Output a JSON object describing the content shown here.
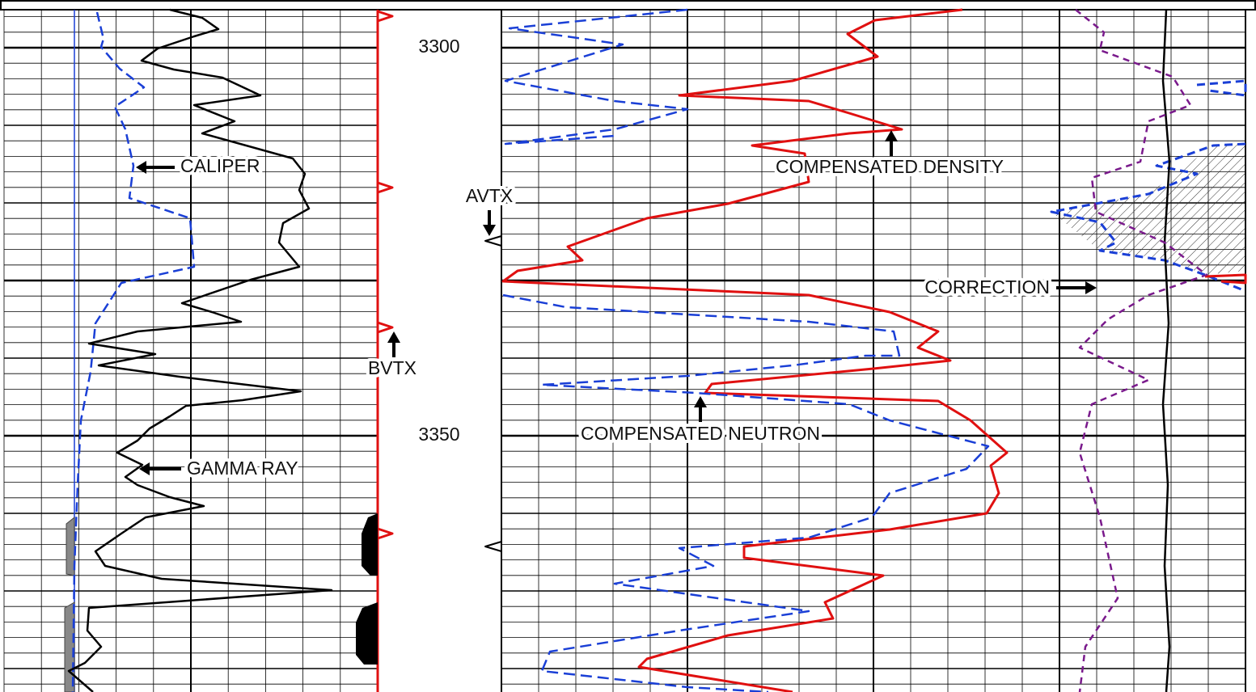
{
  "depth_labels": [
    3300,
    3350
  ],
  "annotations": {
    "caliper": "CALIPER",
    "gamma_ray": "GAMMA RAY",
    "bvtx": "BVTX",
    "avtx": "AVTX",
    "compensated_density": "COMPENSATED DENSITY",
    "compensated_neutron": "COMPENSATED NEUTRON",
    "correction": "CORRECTION"
  }
}
